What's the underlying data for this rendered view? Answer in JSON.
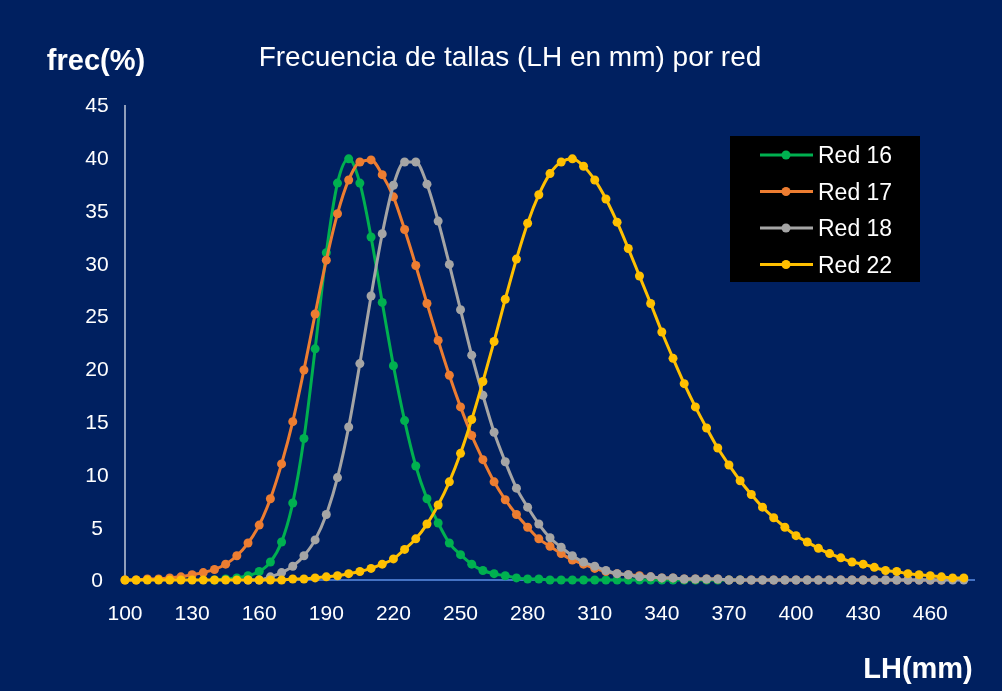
{
  "chart_data": {
    "type": "line",
    "title": "Frecuencia de tallas (LH en mm) por red",
    "xlabel": "LH(mm)",
    "ylabel": "frec(%)",
    "x": [
      100,
      105,
      110,
      115,
      120,
      125,
      130,
      135,
      140,
      145,
      150,
      155,
      160,
      165,
      170,
      175,
      180,
      185,
      190,
      195,
      200,
      205,
      210,
      215,
      220,
      225,
      230,
      235,
      240,
      245,
      250,
      255,
      260,
      265,
      270,
      275,
      280,
      285,
      290,
      295,
      300,
      305,
      310,
      315,
      320,
      325,
      330,
      335,
      340,
      345,
      350,
      355,
      360,
      365,
      370,
      375,
      380,
      385,
      390,
      395,
      400,
      405,
      410,
      415,
      420,
      425,
      430,
      435,
      440,
      445,
      450,
      455,
      460,
      465,
      470,
      475
    ],
    "series": [
      {
        "name": "Red 16",
        "color": "#00b050",
        "values": [
          null,
          null,
          null,
          null,
          null,
          null,
          null,
          null,
          0,
          0.1,
          0.2,
          0.4,
          0.8,
          1.7,
          3.6,
          7.3,
          13.4,
          21.9,
          31.0,
          37.6,
          39.9,
          37.6,
          32.5,
          26.3,
          20.3,
          15.1,
          10.8,
          7.7,
          5.4,
          3.5,
          2.4,
          1.5,
          0.9,
          0.6,
          0.4,
          0.2,
          0.1,
          0.1,
          0,
          0,
          0,
          0,
          0,
          0,
          0,
          0,
          0,
          0,
          0,
          0,
          0,
          0,
          0,
          0,
          0,
          0,
          null,
          null,
          null,
          null,
          null,
          null,
          null,
          null,
          null,
          null,
          null,
          null,
          null,
          null,
          null,
          null,
          null,
          null,
          null,
          null
        ]
      },
      {
        "name": "Red 17",
        "color": "#ed7d31",
        "values": [
          0,
          0,
          0.1,
          0.1,
          0.2,
          0.3,
          0.5,
          0.7,
          1.0,
          1.5,
          2.3,
          3.5,
          5.2,
          7.7,
          11.0,
          15.0,
          19.9,
          25.2,
          30.3,
          34.7,
          37.9,
          39.6,
          39.8,
          38.4,
          36.3,
          33.2,
          29.8,
          26.2,
          22.7,
          19.4,
          16.4,
          13.7,
          11.4,
          9.3,
          7.6,
          6.2,
          5.0,
          3.9,
          3.2,
          2.5,
          1.9,
          1.5,
          1.1,
          0.8,
          0.6,
          0.5,
          0.4,
          0.3,
          0.2,
          0.2,
          0.1,
          0.1,
          0.1,
          0.1,
          0,
          0,
          0,
          0,
          0,
          0,
          0,
          0,
          0,
          0,
          0,
          0,
          0,
          0,
          0,
          0,
          0,
          0,
          0,
          0,
          null,
          null
        ]
      },
      {
        "name": "Red 18",
        "color": "#a5a5a5",
        "values": [
          null,
          null,
          null,
          null,
          null,
          null,
          null,
          null,
          null,
          null,
          null,
          0,
          0,
          0.3,
          0.7,
          1.3,
          2.3,
          3.8,
          6.2,
          9.7,
          14.5,
          20.5,
          26.9,
          32.8,
          37.4,
          39.6,
          39.6,
          37.5,
          34.0,
          29.9,
          25.6,
          21.3,
          17.5,
          14.0,
          11.2,
          8.7,
          6.9,
          5.3,
          4.0,
          3.1,
          2.3,
          1.7,
          1.3,
          0.9,
          0.6,
          0.5,
          0.3,
          0.3,
          0.2,
          0.2,
          0.1,
          0.1,
          0.1,
          0.1,
          0,
          0,
          0,
          0,
          0,
          0,
          0,
          0,
          0,
          0,
          0,
          0,
          0,
          0,
          0,
          0,
          0,
          0,
          0,
          0,
          0,
          0
        ]
      },
      {
        "name": "Red 22",
        "color": "#ffc000",
        "values": [
          0,
          0,
          0,
          0,
          0,
          0,
          0,
          0,
          0,
          0,
          0,
          0,
          0,
          0,
          0,
          0.1,
          0.1,
          0.2,
          0.3,
          0.4,
          0.6,
          0.8,
          1.1,
          1.5,
          2.0,
          2.9,
          3.9,
          5.3,
          7.1,
          9.3,
          12.0,
          15.2,
          18.8,
          22.6,
          26.6,
          30.4,
          33.8,
          36.5,
          38.5,
          39.6,
          39.9,
          39.2,
          37.9,
          36.1,
          33.9,
          31.4,
          28.8,
          26.2,
          23.5,
          21.0,
          18.6,
          16.4,
          14.4,
          12.5,
          10.9,
          9.4,
          8.1,
          6.9,
          5.9,
          5.0,
          4.2,
          3.6,
          3.0,
          2.5,
          2.1,
          1.7,
          1.5,
          1.2,
          0.9,
          0.8,
          0.6,
          0.5,
          0.4,
          0.3,
          0.2,
          0.2
        ]
      }
    ],
    "xlim": [
      100,
      480
    ],
    "xticks": [
      100,
      130,
      160,
      190,
      220,
      250,
      280,
      310,
      340,
      370,
      400,
      430,
      460
    ],
    "ylim": [
      0,
      45
    ],
    "yticks": [
      0,
      5,
      10,
      15,
      20,
      25,
      30,
      35,
      40,
      45
    ],
    "legend": "top right",
    "marker": "circle",
    "line_style": "solid",
    "grid": false
  }
}
